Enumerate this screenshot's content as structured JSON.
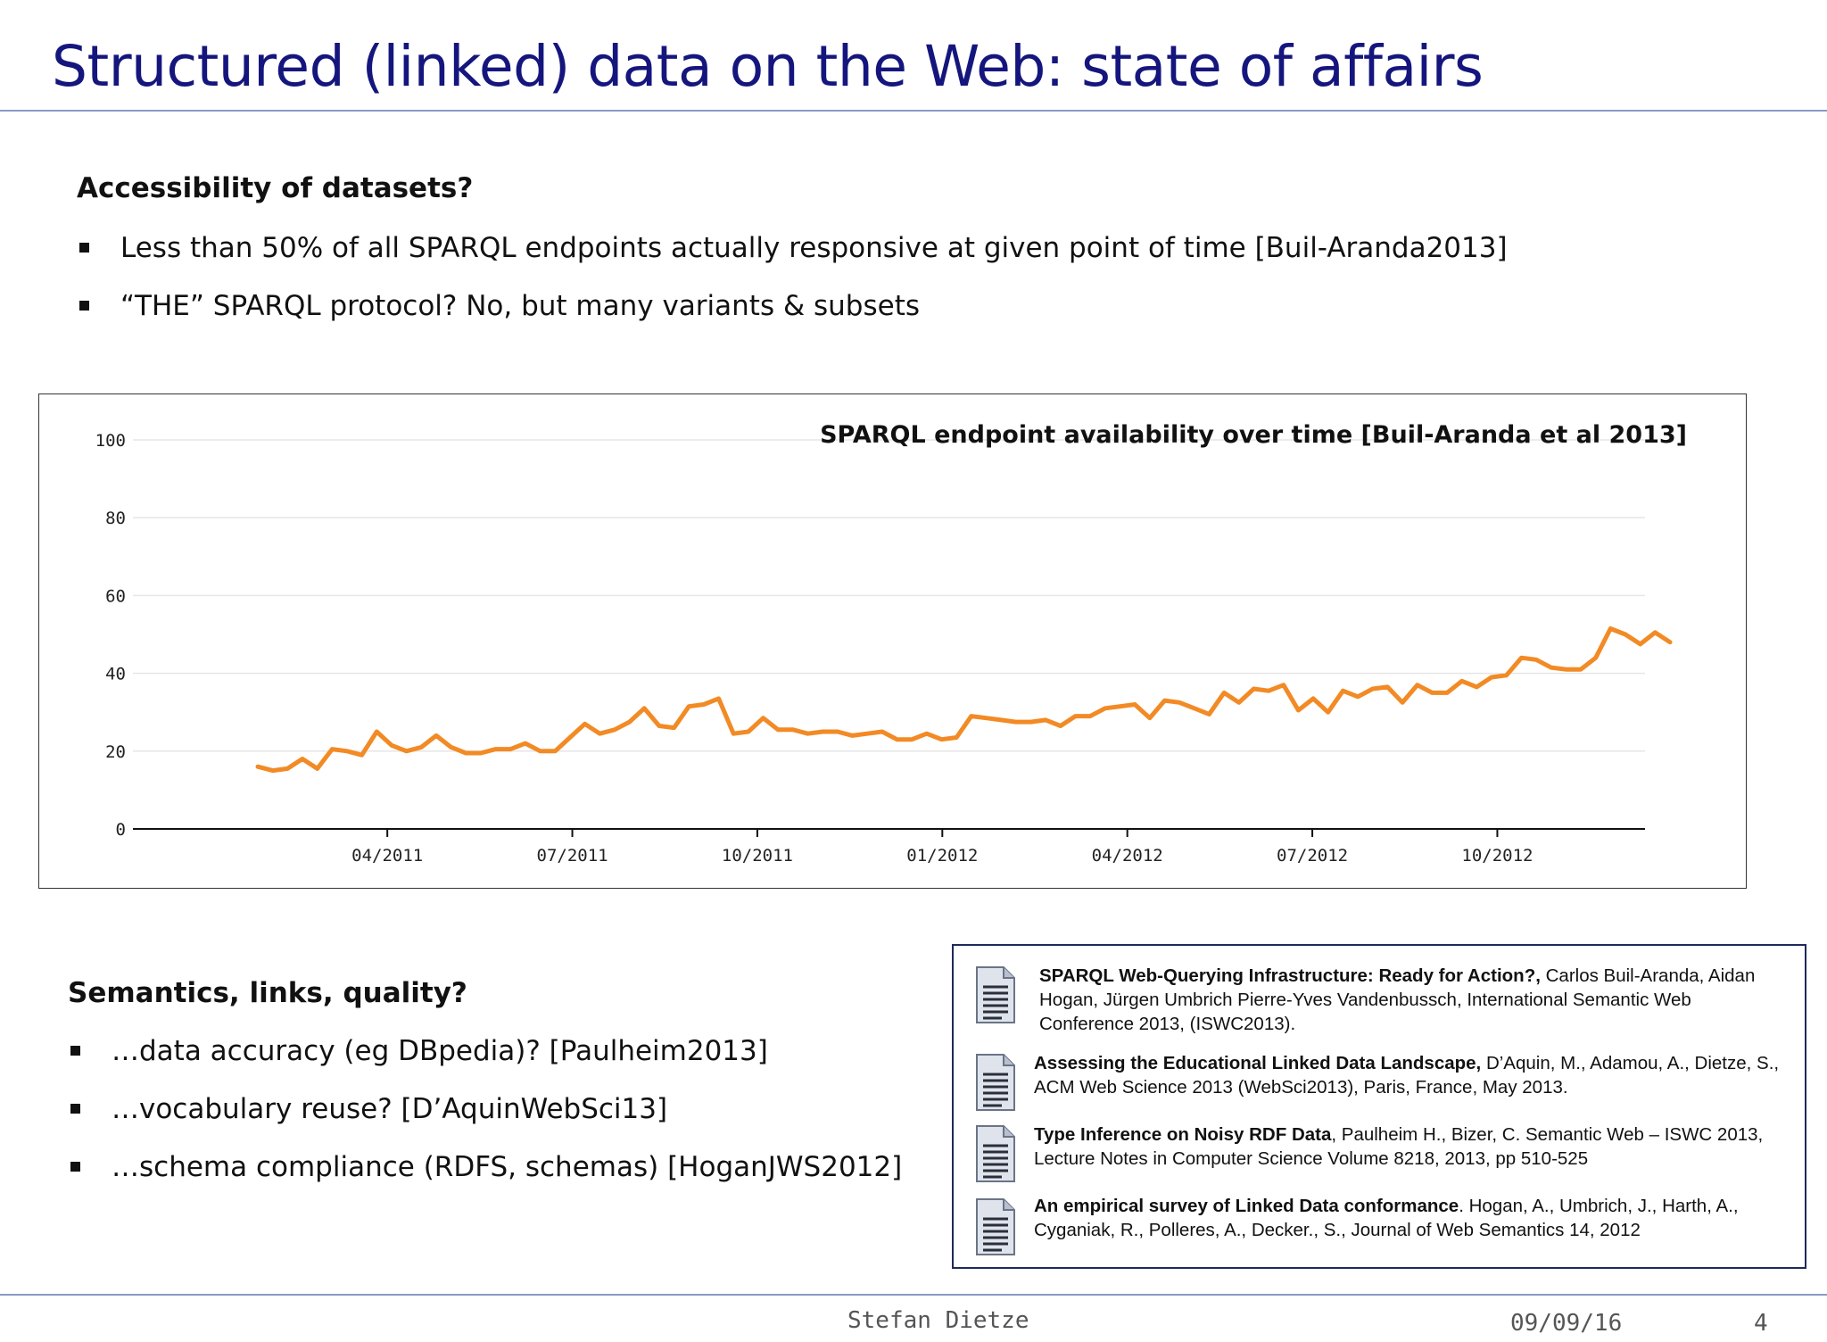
{
  "slide": {
    "title": "Structured (linked) data on the Web: state of affairs"
  },
  "section1": {
    "heading": "Accessibility of datasets?",
    "bullets": [
      "Less than 50% of all SPARQL endpoints actually responsive at given point of time [Buil-Aranda2013]",
      "“THE” SPARQL protocol?  No, but many variants & subsets"
    ]
  },
  "chart_data": {
    "type": "line",
    "title": "SPARQL endpoint availability over time [Buil-Aranda et al 2013]",
    "xlabel": "",
    "ylabel": "",
    "ylim": [
      0,
      100
    ],
    "yticks": [
      "0",
      "20",
      "40",
      "60",
      "80",
      "100"
    ],
    "xticks": [
      "04/2011",
      "07/2011",
      "10/2011",
      "01/2012",
      "04/2012",
      "07/2012",
      "10/2012"
    ],
    "grid": true,
    "line_color": "#f28a25",
    "x_start": "2011-02",
    "x_end": "2012-12",
    "series": [
      {
        "values": [
          16,
          15,
          15.5,
          18,
          15.5,
          20.5,
          20,
          19,
          25,
          21.5,
          20,
          21,
          24,
          21,
          19.5,
          19.5,
          20.5,
          20.5,
          22,
          20,
          20,
          23.5,
          27,
          24.5,
          25.5,
          27.5,
          31,
          26.5,
          26,
          31.5,
          32,
          33.5,
          24.5,
          25,
          28.5,
          25.5,
          25.5,
          24.5,
          25,
          25,
          24,
          24.5,
          25,
          23,
          23,
          24.5,
          23,
          23.5,
          29,
          28.5,
          28,
          27.5,
          27.5,
          28,
          26.5,
          29,
          29,
          31,
          31.5,
          32,
          28.5,
          33,
          32.5,
          31,
          29.5,
          35,
          32.5,
          36,
          35.5,
          37,
          30.5,
          33.5,
          30,
          35.5,
          34,
          36,
          36.5,
          32.5,
          37,
          35,
          35,
          38,
          36.5,
          39,
          39.5,
          44,
          43.5,
          41.5,
          41,
          41,
          44,
          51.5,
          50,
          47.5,
          50.5,
          48
        ]
      }
    ]
  },
  "section2": {
    "heading": "Semantics, links, quality?",
    "bullets": [
      "…data accuracy (eg DBpedia)? [Paulheim2013]",
      "…vocabulary reuse? [D’AquinWebSci13]",
      "…schema compliance (RDFS, schemas) [HoganJWS2012]"
    ]
  },
  "references": [
    {
      "title": "SPARQL Web-Querying Infrastructure: Ready for Action?,",
      "rest": " Carlos Buil-Aranda, Aidan Hogan, Jürgen Umbrich Pierre-Yves Vandenbussch, International Semantic Web Conference 2013, (ISWC2013).",
      "icon": "document-icon"
    },
    {
      "title": "Assessing the Educational Linked Data Landscape,",
      "rest": " D’Aquin, M., Adamou, A., Dietze, S., ACM Web Science 2013 (WebSci2013), Paris, France, May 2013.",
      "icon": "document-icon"
    },
    {
      "title": "Type Inference on Noisy RDF Data",
      "rest": ", Paulheim H., Bizer, C. Semantic Web – ISWC 2013, Lecture Notes in Computer Science Volume 8218, 2013, pp 510-525",
      "icon": "document-icon"
    },
    {
      "title": "An empirical survey of Linked Data conformance",
      "rest": ". Hogan, A., Umbrich, J., Harth, A., Cyganiak, R., Polleres, A., Decker., S., Journal of Web Semantics 14, 2012",
      "icon": "document-icon"
    }
  ],
  "footer": {
    "author": "Stefan Dietze",
    "date": "09/09/16",
    "page": "4"
  }
}
